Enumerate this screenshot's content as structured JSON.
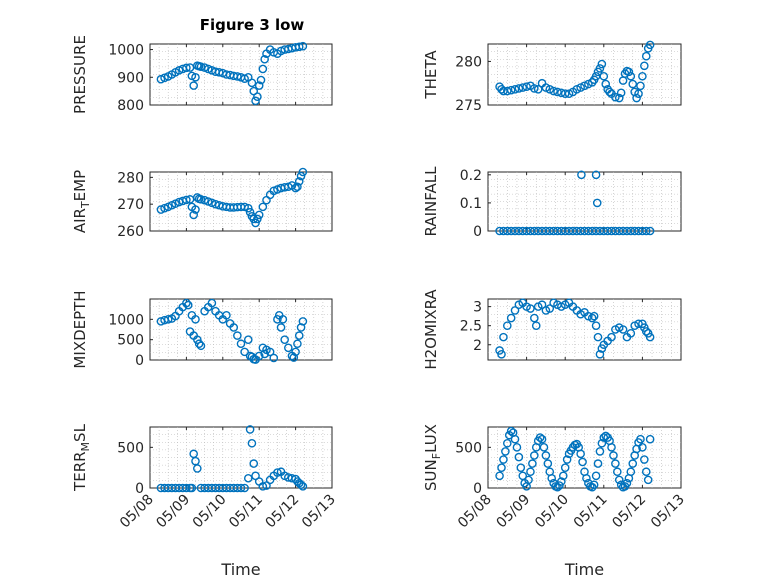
{
  "figure": {
    "title": "Figure 3 low",
    "marker_color": "#0072BD"
  },
  "chart_data": [
    {
      "type": "scatter",
      "ylabel": "PRESSURE",
      "title": "Figure 3 low",
      "xlim": [
        0,
        5
      ],
      "ylim": [
        800,
        1020
      ],
      "yticks": [
        800,
        900,
        1000
      ],
      "grid": true,
      "x": [
        0.3,
        0.4,
        0.5,
        0.6,
        0.7,
        0.8,
        0.9,
        1.0,
        1.1,
        1.15,
        1.2,
        1.25,
        1.3,
        1.35,
        1.4,
        1.5,
        1.6,
        1.7,
        1.8,
        1.9,
        2.0,
        2.1,
        2.2,
        2.3,
        2.4,
        2.5,
        2.6,
        2.7,
        2.8,
        2.85,
        2.9,
        2.95,
        3.0,
        3.05,
        3.1,
        3.15,
        3.2,
        3.3,
        3.4,
        3.5,
        3.6,
        3.7,
        3.8,
        3.9,
        4.0,
        4.1,
        4.2
      ],
      "y": [
        893,
        898,
        903,
        910,
        918,
        925,
        930,
        934,
        935,
        905,
        870,
        900,
        942,
        940,
        938,
        935,
        930,
        925,
        920,
        918,
        915,
        910,
        908,
        905,
        903,
        900,
        895,
        900,
        880,
        850,
        815,
        830,
        870,
        890,
        930,
        965,
        985,
        1000,
        990,
        985,
        995,
        1000,
        1002,
        1005,
        1008,
        1010,
        1012
      ]
    },
    {
      "type": "scatter",
      "ylabel": "THETA",
      "xlim": [
        0,
        5
      ],
      "ylim": [
        275,
        282
      ],
      "yticks": [
        275,
        280
      ],
      "grid": true,
      "x": [
        0.3,
        0.35,
        0.4,
        0.5,
        0.6,
        0.7,
        0.8,
        0.9,
        1.0,
        1.1,
        1.2,
        1.3,
        1.4,
        1.5,
        1.6,
        1.7,
        1.8,
        1.9,
        2.0,
        2.1,
        2.2,
        2.3,
        2.4,
        2.5,
        2.6,
        2.7,
        2.75,
        2.8,
        2.85,
        2.9,
        2.95,
        3.0,
        3.05,
        3.1,
        3.15,
        3.2,
        3.3,
        3.4,
        3.45,
        3.5,
        3.55,
        3.6,
        3.65,
        3.7,
        3.75,
        3.8,
        3.85,
        3.9,
        3.95,
        4.0,
        4.05,
        4.1,
        4.15,
        4.2
      ],
      "y": [
        277.1,
        276.8,
        276.6,
        276.6,
        276.7,
        276.8,
        276.9,
        277.0,
        277.1,
        277.2,
        276.9,
        276.8,
        277.5,
        277.0,
        276.8,
        276.6,
        276.5,
        276.4,
        276.3,
        276.3,
        276.5,
        276.8,
        277.0,
        277.2,
        277.4,
        277.6,
        277.9,
        278.3,
        278.8,
        279.2,
        279.7,
        278.3,
        277.4,
        276.8,
        276.5,
        276.3,
        275.9,
        275.8,
        276.4,
        277.8,
        278.6,
        278.9,
        278.8,
        278.3,
        277.4,
        276.5,
        275.8,
        276.3,
        277.2,
        278.3,
        279.5,
        280.6,
        281.5,
        281.9
      ]
    },
    {
      "type": "scatter",
      "ylabel": "AIR_TEMP",
      "xlim": [
        0,
        5
      ],
      "ylim": [
        260,
        282
      ],
      "yticks": [
        260,
        270,
        280
      ],
      "grid": true,
      "x": [
        0.3,
        0.4,
        0.5,
        0.6,
        0.7,
        0.8,
        0.9,
        1.0,
        1.1,
        1.15,
        1.2,
        1.25,
        1.3,
        1.35,
        1.4,
        1.5,
        1.6,
        1.7,
        1.8,
        1.9,
        2.0,
        2.1,
        2.2,
        2.3,
        2.4,
        2.5,
        2.6,
        2.7,
        2.75,
        2.8,
        2.85,
        2.9,
        2.95,
        3.0,
        3.1,
        3.2,
        3.3,
        3.4,
        3.5,
        3.6,
        3.7,
        3.8,
        3.9,
        4.0,
        4.05,
        4.1,
        4.15,
        4.2
      ],
      "y": [
        268,
        268.5,
        269,
        269.6,
        270.2,
        270.8,
        271.2,
        271.6,
        271.8,
        269,
        266,
        268,
        272.5,
        272,
        271.8,
        271.5,
        271,
        270.5,
        270,
        269.6,
        269.2,
        269,
        268.8,
        268.8,
        268.9,
        269,
        269,
        268.5,
        267,
        265.5,
        264.5,
        263,
        264.5,
        266,
        269,
        271.5,
        273.5,
        275,
        275.5,
        276,
        276.3,
        276.5,
        277,
        276,
        276.5,
        278.5,
        280.5,
        282
      ]
    },
    {
      "type": "scatter",
      "ylabel": "RAINFALL",
      "xlim": [
        0,
        5
      ],
      "ylim": [
        0,
        0.21
      ],
      "yticks": [
        0,
        0.1,
        0.2
      ],
      "grid": true,
      "x": [
        0.3,
        0.4,
        0.5,
        0.6,
        0.7,
        0.8,
        0.9,
        1.0,
        1.1,
        1.2,
        1.3,
        1.4,
        1.5,
        1.6,
        1.7,
        1.8,
        1.9,
        2.0,
        2.1,
        2.2,
        2.3,
        2.4,
        2.5,
        2.6,
        2.7,
        2.8,
        2.9,
        3.0,
        3.1,
        3.2,
        3.3,
        3.4,
        3.5,
        3.6,
        3.7,
        3.8,
        3.9,
        4.0,
        4.1,
        4.2,
        2.42,
        2.8,
        2.83
      ],
      "y": [
        0,
        0,
        0,
        0,
        0,
        0,
        0,
        0,
        0,
        0,
        0,
        0,
        0,
        0,
        0,
        0,
        0,
        0,
        0,
        0,
        0,
        0,
        0,
        0,
        0,
        0,
        0,
        0,
        0,
        0,
        0,
        0,
        0,
        0,
        0,
        0,
        0,
        0,
        0,
        0,
        0.2,
        0.2,
        0.1
      ]
    },
    {
      "type": "scatter",
      "ylabel": "MIXDEPTH",
      "xlim": [
        0,
        5
      ],
      "ylim": [
        0,
        1500
      ],
      "yticks": [
        0,
        500,
        1000
      ],
      "grid": true,
      "x": [
        0.3,
        0.4,
        0.5,
        0.6,
        0.7,
        0.8,
        0.9,
        1.0,
        1.05,
        1.1,
        1.15,
        1.2,
        1.25,
        1.3,
        1.35,
        1.4,
        1.5,
        1.6,
        1.7,
        1.8,
        1.9,
        2.0,
        2.1,
        2.2,
        2.3,
        2.4,
        2.5,
        2.6,
        2.7,
        2.75,
        2.8,
        2.85,
        2.9,
        3.0,
        3.1,
        3.15,
        3.2,
        3.3,
        3.4,
        3.5,
        3.55,
        3.6,
        3.65,
        3.7,
        3.8,
        3.9,
        3.95,
        4.0,
        4.05,
        4.1,
        4.15,
        4.2
      ],
      "y": [
        950,
        980,
        1000,
        1020,
        1080,
        1200,
        1300,
        1400,
        1350,
        700,
        1100,
        600,
        1000,
        500,
        400,
        350,
        1200,
        1300,
        1400,
        1200,
        1100,
        1000,
        1100,
        900,
        800,
        600,
        400,
        200,
        500,
        100,
        80,
        20,
        10,
        100,
        300,
        150,
        250,
        200,
        50,
        1000,
        1100,
        800,
        1000,
        500,
        300,
        100,
        60,
        200,
        400,
        600,
        800,
        950
      ]
    },
    {
      "type": "scatter",
      "ylabel": "H2OMIXRA",
      "xlim": [
        0,
        5
      ],
      "ylim": [
        1.6,
        3.2
      ],
      "yticks": [
        2,
        2.5,
        3
      ],
      "grid": true,
      "x": [
        0.3,
        0.35,
        0.4,
        0.5,
        0.6,
        0.7,
        0.8,
        0.9,
        1.0,
        1.1,
        1.2,
        1.25,
        1.3,
        1.4,
        1.5,
        1.6,
        1.7,
        1.8,
        1.9,
        2.0,
        2.1,
        2.2,
        2.3,
        2.4,
        2.5,
        2.6,
        2.7,
        2.75,
        2.8,
        2.85,
        2.9,
        2.95,
        3.0,
        3.1,
        3.2,
        3.3,
        3.4,
        3.5,
        3.6,
        3.7,
        3.8,
        3.9,
        4.0,
        4.05,
        4.1,
        4.15,
        4.2
      ],
      "y": [
        1.85,
        1.75,
        2.2,
        2.5,
        2.7,
        2.9,
        3.05,
        3.1,
        3.0,
        2.95,
        2.7,
        2.5,
        3.0,
        3.05,
        2.9,
        2.95,
        3.1,
        3.05,
        3.0,
        3.05,
        3.1,
        3.0,
        2.9,
        2.8,
        2.85,
        2.75,
        2.7,
        2.75,
        2.5,
        2.2,
        1.75,
        1.9,
        2.0,
        2.1,
        2.2,
        2.4,
        2.45,
        2.4,
        2.2,
        2.3,
        2.5,
        2.55,
        2.55,
        2.45,
        2.35,
        2.3,
        2.2
      ]
    },
    {
      "type": "scatter",
      "ylabel": "TERR_MSL",
      "xlim": [
        0,
        5
      ],
      "ylim": [
        0,
        750
      ],
      "yticks": [
        0,
        500
      ],
      "grid": true,
      "x": [
        0.3,
        0.4,
        0.5,
        0.6,
        0.7,
        0.8,
        0.9,
        1.0,
        1.1,
        1.15,
        1.2,
        1.25,
        1.3,
        1.4,
        1.5,
        1.6,
        1.7,
        1.8,
        1.9,
        2.0,
        2.1,
        2.2,
        2.3,
        2.4,
        2.5,
        2.6,
        2.7,
        2.75,
        2.8,
        2.85,
        2.9,
        3.0,
        3.1,
        3.2,
        3.3,
        3.4,
        3.5,
        3.6,
        3.7,
        3.8,
        3.9,
        4.0,
        4.05,
        4.1,
        4.15,
        4.2
      ],
      "y": [
        0,
        0,
        0,
        0,
        0,
        0,
        0,
        0,
        0,
        0,
        420,
        330,
        240,
        0,
        0,
        0,
        0,
        0,
        0,
        0,
        0,
        0,
        0,
        0,
        0,
        0,
        120,
        720,
        550,
        300,
        150,
        80,
        20,
        30,
        100,
        150,
        190,
        200,
        150,
        130,
        120,
        110,
        80,
        60,
        40,
        20
      ]
    },
    {
      "type": "scatter",
      "ylabel": "SUN_FLUX",
      "xlim": [
        0,
        5
      ],
      "ylim": [
        0,
        750
      ],
      "yticks": [
        0,
        500
      ],
      "grid": true,
      "x": [
        0.3,
        0.35,
        0.4,
        0.45,
        0.5,
        0.55,
        0.6,
        0.65,
        0.7,
        0.75,
        0.8,
        0.85,
        0.9,
        0.95,
        1.0,
        1.05,
        1.1,
        1.15,
        1.2,
        1.25,
        1.3,
        1.35,
        1.4,
        1.45,
        1.5,
        1.55,
        1.6,
        1.65,
        1.7,
        1.75,
        1.8,
        1.85,
        1.9,
        1.95,
        2.0,
        2.05,
        2.1,
        2.15,
        2.2,
        2.25,
        2.3,
        2.35,
        2.4,
        2.45,
        2.5,
        2.55,
        2.6,
        2.65,
        2.7,
        2.75,
        2.8,
        2.85,
        2.9,
        2.95,
        3.0,
        3.05,
        3.1,
        3.15,
        3.2,
        3.25,
        3.3,
        3.35,
        3.4,
        3.45,
        3.5,
        3.55,
        3.6,
        3.65,
        3.7,
        3.75,
        3.8,
        3.85,
        3.9,
        3.95,
        4.0,
        4.05,
        4.1,
        4.15,
        4.2
      ],
      "y": [
        150,
        250,
        350,
        450,
        550,
        650,
        700,
        680,
        600,
        500,
        380,
        250,
        150,
        60,
        20,
        100,
        200,
        300,
        400,
        500,
        580,
        620,
        600,
        500,
        400,
        300,
        200,
        120,
        60,
        20,
        10,
        30,
        80,
        150,
        250,
        350,
        420,
        460,
        500,
        530,
        540,
        500,
        420,
        320,
        200,
        120,
        60,
        20,
        10,
        40,
        150,
        300,
        450,
        550,
        620,
        640,
        620,
        580,
        500,
        400,
        300,
        200,
        100,
        40,
        10,
        20,
        60,
        120,
        200,
        300,
        400,
        480,
        560,
        600,
        500,
        350,
        200,
        100,
        600
      ]
    }
  ],
  "x_axis": {
    "xlabel": "Time",
    "ticks": [
      {
        "v": 0,
        "label": "05/08"
      },
      {
        "v": 1,
        "label": "05/09"
      },
      {
        "v": 2,
        "label": "05/10"
      },
      {
        "v": 3,
        "label": "05/11"
      },
      {
        "v": 4,
        "label": "05/12"
      },
      {
        "v": 5,
        "label": "05/13"
      }
    ]
  }
}
